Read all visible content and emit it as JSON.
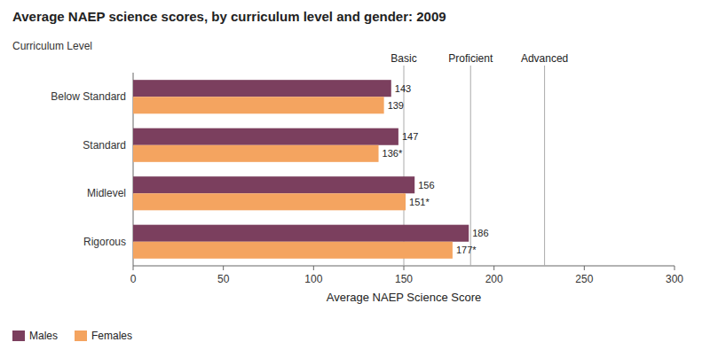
{
  "chart_data": {
    "type": "bar",
    "orientation": "horizontal",
    "title": "Average NAEP science scores, by curriculum level and gender: 2009",
    "categories": [
      "Below Standard",
      "Standard",
      "Midlevel",
      "Rigorous"
    ],
    "series": [
      {
        "name": "Males",
        "color": "#7B3F5E",
        "values": [
          143,
          147,
          156,
          186
        ]
      },
      {
        "name": "Females",
        "color": "#F4A460",
        "values": [
          139,
          136,
          151,
          177
        ],
        "value_labels": [
          "139",
          "136*",
          "151*",
          "177*"
        ]
      }
    ],
    "xlim": [
      0,
      300
    ],
    "xticks": [
      0,
      50,
      100,
      150,
      200,
      250,
      300
    ],
    "xlabel": "Average NAEP Science Score",
    "ylabel": "Curriculum Level",
    "data_labels": true,
    "legend": "lower left",
    "annotations": [
      {
        "x": 150,
        "text": "Basic",
        "color": "#AAAAAA"
      },
      {
        "x": 187,
        "text": "Proficient",
        "color": "#AAAAAA"
      },
      {
        "x": 228,
        "text": "Advanced",
        "color": "#AAAAAA"
      }
    ]
  }
}
